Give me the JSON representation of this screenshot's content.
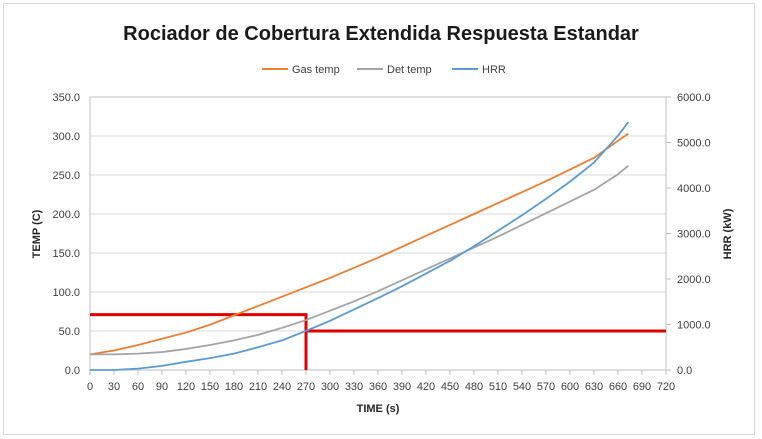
{
  "chart_data": {
    "type": "line",
    "title": "Rociador de Cobertura Extendida Respuesta Estandar",
    "xlabel": "TIME (s)",
    "ylabel": "TEMP (C)",
    "y2label": "HRR (kW)",
    "xlim": [
      0,
      720
    ],
    "ylim": [
      0,
      350
    ],
    "y2lim": [
      0,
      6000
    ],
    "xticks": [
      "0",
      "30",
      "60",
      "90",
      "120",
      "150",
      "180",
      "210",
      "240",
      "270",
      "300",
      "330",
      "360",
      "390",
      "420",
      "450",
      "480",
      "510",
      "540",
      "570",
      "600",
      "630",
      "660",
      "690",
      "720"
    ],
    "yticks": [
      "0.0",
      "50.0",
      "100.0",
      "150.0",
      "200.0",
      "250.0",
      "300.0",
      "350.0"
    ],
    "y2ticks": [
      "0.0",
      "1000.0",
      "2000.0",
      "3000.0",
      "4000.0",
      "5000.0",
      "6000.0"
    ],
    "grid": true,
    "legend_position": "top",
    "series": [
      {
        "name": "Gas temp",
        "color": "#ed7d31",
        "axis": "left",
        "x": [
          0,
          30,
          60,
          90,
          120,
          150,
          180,
          210,
          240,
          270,
          300,
          330,
          360,
          390,
          420,
          450,
          480,
          510,
          540,
          570,
          600,
          630,
          660,
          673
        ],
        "y": [
          20,
          25,
          32,
          40,
          48,
          58,
          70,
          82,
          94,
          106,
          118,
          131,
          144,
          158,
          172,
          186,
          200,
          214,
          228,
          242,
          257,
          272,
          294,
          303
        ]
      },
      {
        "name": "Det temp",
        "color": "#a5a5a5",
        "axis": "left",
        "x": [
          0,
          30,
          60,
          90,
          120,
          150,
          180,
          210,
          240,
          270,
          300,
          330,
          360,
          390,
          420,
          450,
          480,
          510,
          540,
          570,
          600,
          630,
          660,
          673
        ],
        "y": [
          20,
          20,
          21,
          23,
          27,
          32,
          38,
          45,
          54,
          64,
          76,
          88,
          101,
          115,
          129,
          143,
          157,
          171,
          186,
          201,
          216,
          231,
          251,
          262
        ]
      },
      {
        "name": "HRR",
        "color": "#5b9bd5",
        "axis": "right",
        "x": [
          0,
          30,
          60,
          90,
          120,
          150,
          180,
          210,
          240,
          270,
          300,
          330,
          360,
          390,
          420,
          450,
          480,
          510,
          540,
          570,
          600,
          630,
          660,
          673
        ],
        "y": [
          0,
          0,
          30,
          90,
          180,
          260,
          360,
          500,
          650,
          860,
          1080,
          1330,
          1580,
          1840,
          2120,
          2400,
          2720,
          3060,
          3400,
          3760,
          4140,
          4560,
          5150,
          5450
        ]
      }
    ],
    "annotations": [
      {
        "type": "polyline",
        "color": "#e00000",
        "points": [
          [
            0,
            71
          ],
          [
            270,
            71
          ],
          [
            270,
            0
          ]
        ]
      },
      {
        "type": "hline",
        "color": "#e00000",
        "x_from": 270,
        "x_to": 720,
        "y": 50
      }
    ]
  }
}
